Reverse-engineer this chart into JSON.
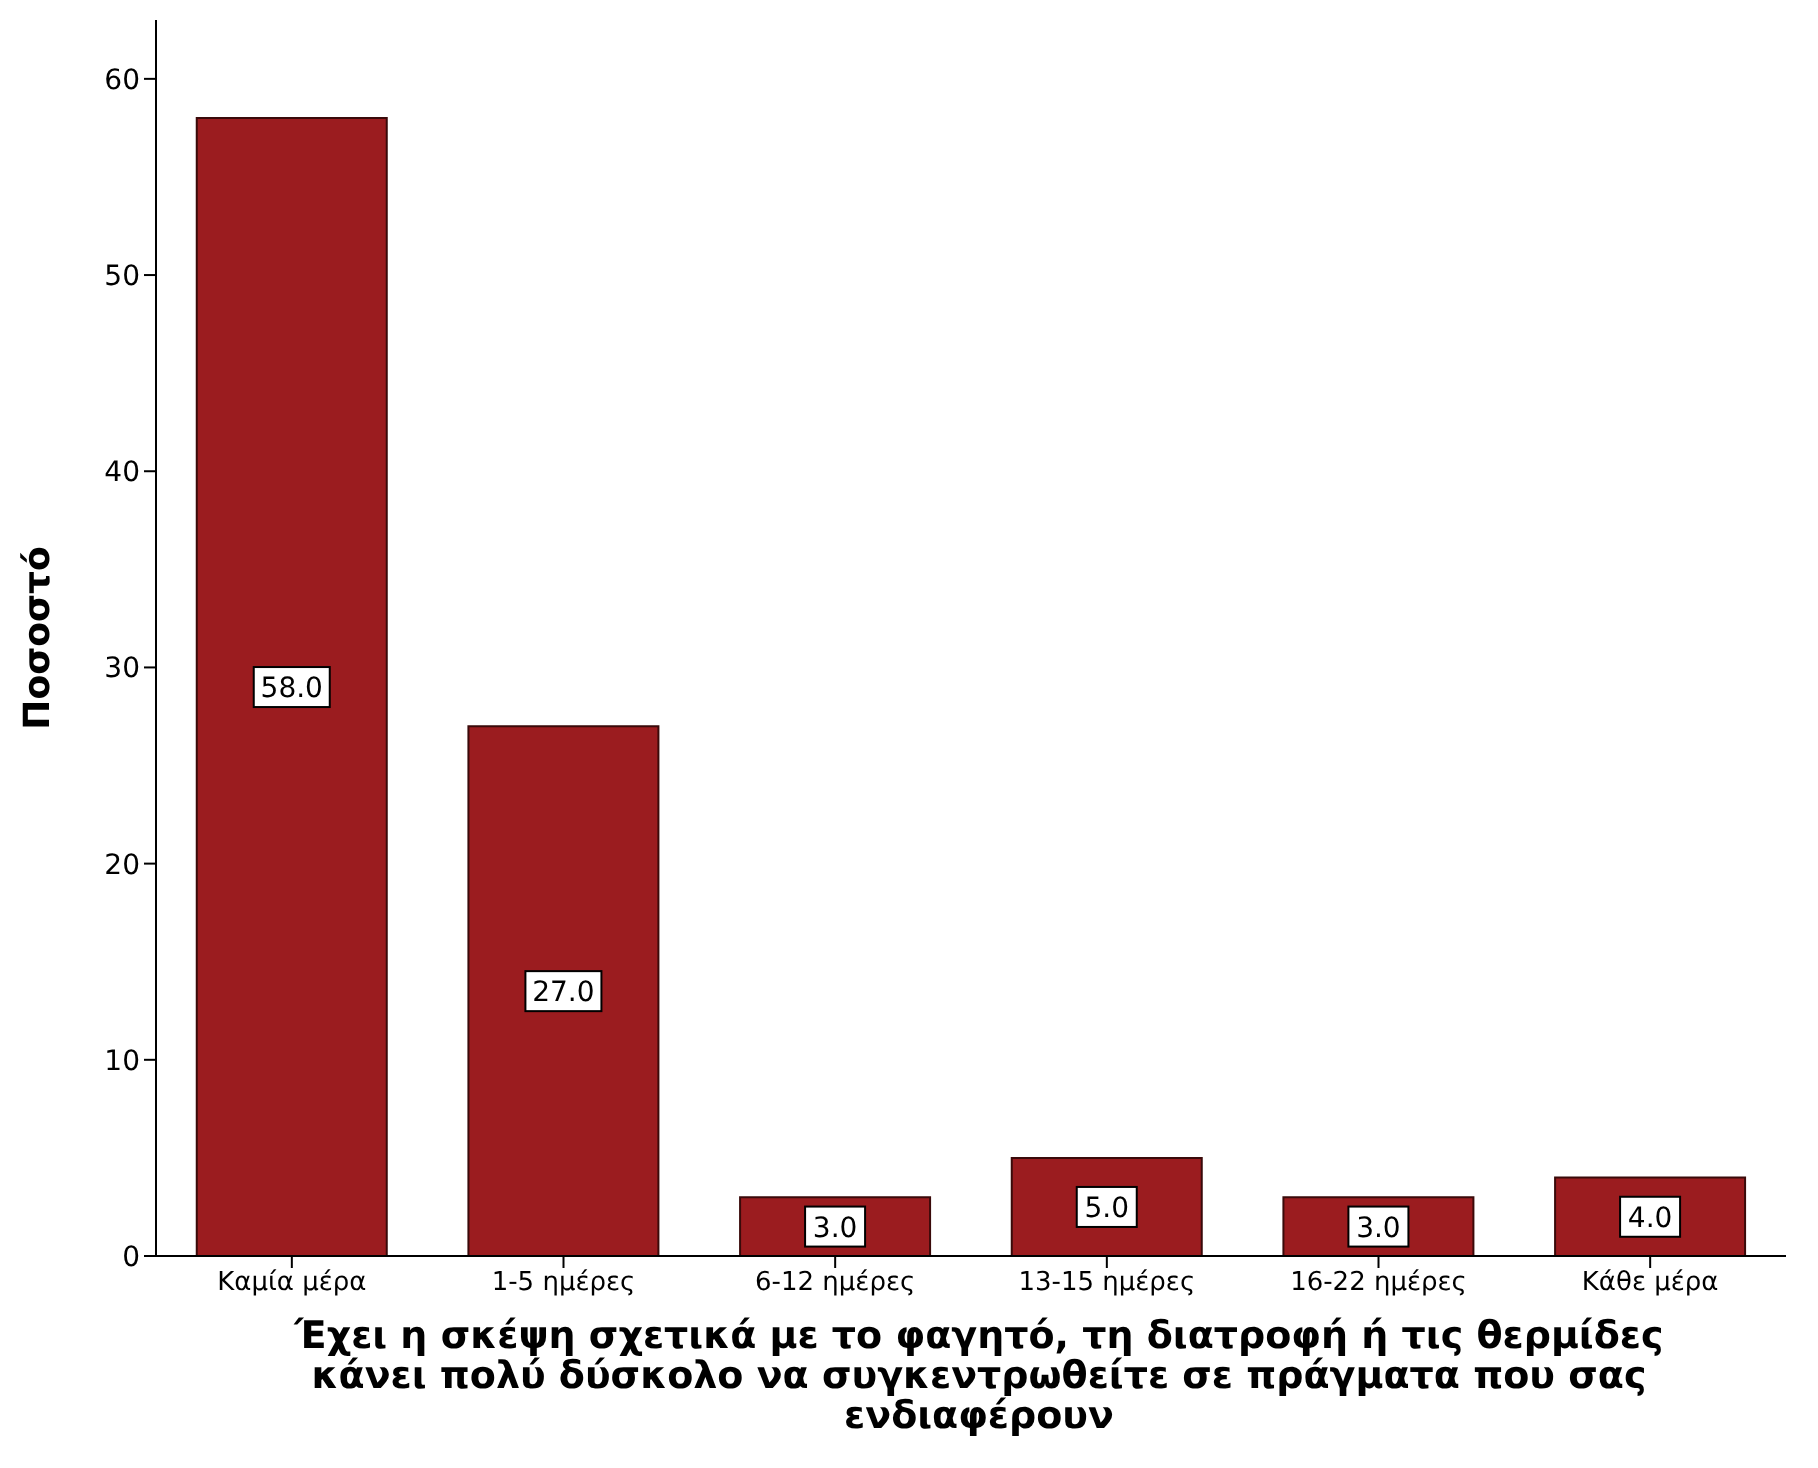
{
  "chart_data": {
    "type": "bar",
    "xlabel": "Έχει η σκέψη σχετικά με το φαγητό, τη διατροφή ή τις θερμίδες\nκάνει πολύ δύσκολο να συγκεντρωθείτε σε πράγματα που σας\nενδιαφέρουν",
    "ylabel": "Ποσοστό",
    "categories": [
      "Καμία μέρα",
      "1-5 ημέρες",
      "6-12 ημέρες",
      "13-15 ημέρες",
      "16-22 ημέρες",
      "Κάθε μέρα"
    ],
    "values": [
      58,
      27,
      3,
      5,
      3,
      4
    ],
    "value_labels": [
      "58.0",
      "27.0",
      "3.0",
      "5.0",
      "3.0",
      "4.0"
    ],
    "color": "#9b1c1f",
    "ylim": [
      0,
      63
    ],
    "yticks": [
      0,
      10,
      20,
      30,
      40,
      50,
      60
    ]
  }
}
